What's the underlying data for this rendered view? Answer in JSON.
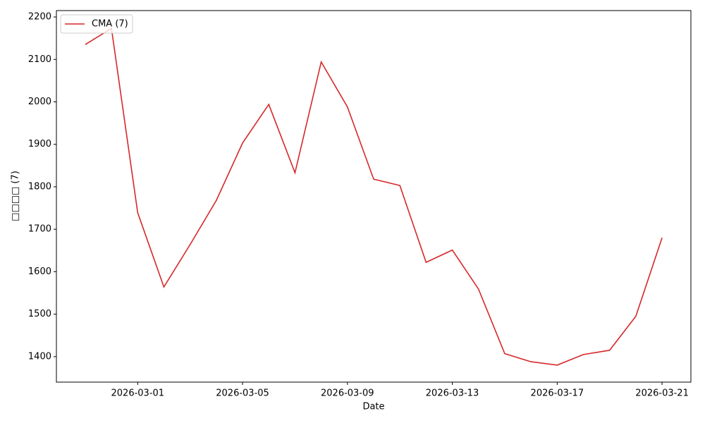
{
  "chart_data": {
    "type": "line",
    "x_label": "Date",
    "y_label": "□□□□ (7)",
    "x": [
      "2026-02-27",
      "2026-02-28",
      "2026-03-01",
      "2026-03-02",
      "2026-03-03",
      "2026-03-04",
      "2026-03-05",
      "2026-03-06",
      "2026-03-07",
      "2026-03-08",
      "2026-03-09",
      "2026-03-10",
      "2026-03-11",
      "2026-03-12",
      "2026-03-13",
      "2026-03-14",
      "2026-03-15",
      "2026-03-16",
      "2026-03-17",
      "2026-03-18",
      "2026-03-19",
      "2026-03-20",
      "2026-03-21"
    ],
    "series": [
      {
        "name": "CMA (7)",
        "color": "#d62728",
        "values": [
          2135,
          2173,
          1739,
          1564,
          1664,
          1768,
          1903,
          1994,
          1833,
          2094,
          1988,
          1818,
          1803,
          1622,
          1651,
          1559,
          1407,
          1388,
          1380,
          1405,
          1415,
          1495,
          1680
        ]
      }
    ],
    "xlim": [
      "2026-02-25T21:36",
      "2026-03-22T02:24"
    ],
    "xticks": [
      "2026-03-01",
      "2026-03-05",
      "2026-03-09",
      "2026-03-13",
      "2026-03-17",
      "2026-03-21"
    ],
    "ylim": [
      1340,
      2215
    ],
    "yticks": [
      1400,
      1500,
      1600,
      1700,
      1800,
      1900,
      2000,
      2100,
      2200
    ],
    "grid": false,
    "legend": "upper left"
  }
}
